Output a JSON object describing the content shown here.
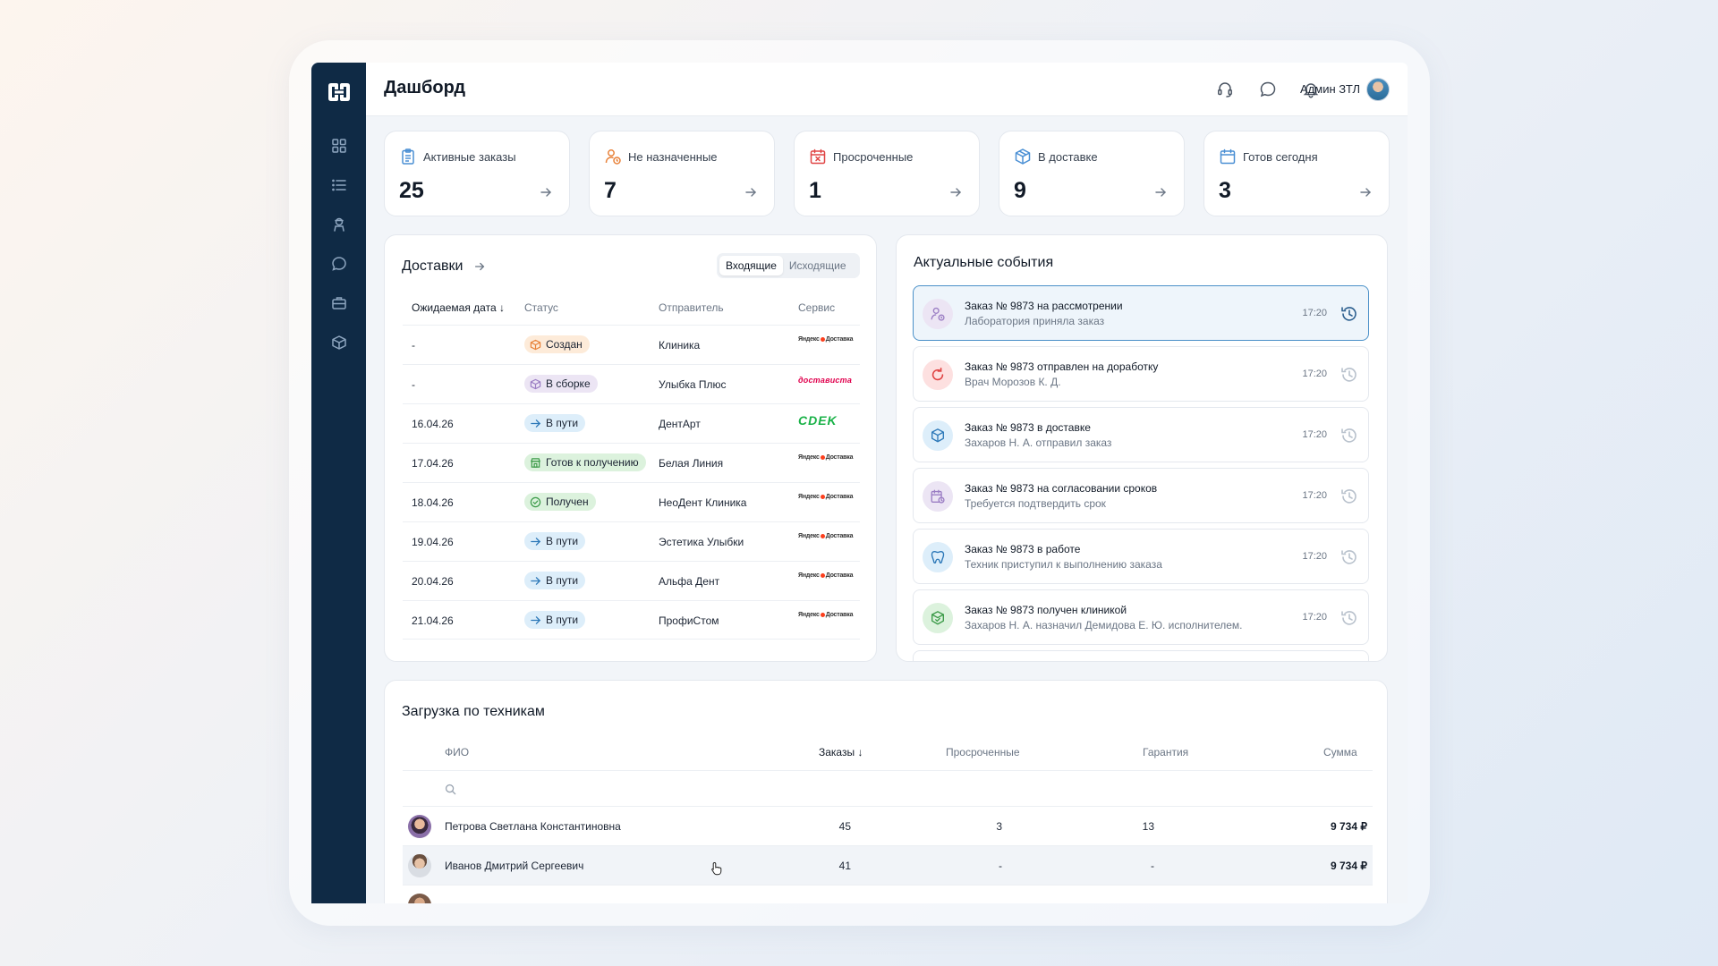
{
  "page": {
    "title": "Дашборд"
  },
  "user": {
    "name": "Админ ЗТЛ"
  },
  "stats": [
    {
      "label": "Активные заказы",
      "value": "25",
      "icon": "clipboard-icon",
      "color": "#4a8fd4"
    },
    {
      "label": "Не назначенные",
      "value": "7",
      "icon": "user-clock-icon",
      "color": "#e8823a"
    },
    {
      "label": "Просроченные",
      "value": "1",
      "icon": "calendar-x-icon",
      "color": "#e04545"
    },
    {
      "label": "В доставке",
      "value": "9",
      "icon": "box-icon",
      "color": "#4a8fd4"
    },
    {
      "label": "Готов сегодня",
      "value": "3",
      "icon": "calendar-icon",
      "color": "#4a8fd4"
    }
  ],
  "deliveries": {
    "title": "Доставки",
    "tabs": [
      "Входящие",
      "Исходящие"
    ],
    "columns": [
      "Ожидаемая дата",
      "Статус",
      "Отправитель",
      "Сервис"
    ],
    "rows": [
      {
        "date": "-",
        "status": "Создан",
        "sender": "Клиника",
        "service": "yandex"
      },
      {
        "date": "-",
        "status": "В сборке",
        "sender": "Улыбка Плюс",
        "service": "dostavista"
      },
      {
        "date": "16.04.26",
        "status": "В пути",
        "sender": "ДентАрт",
        "service": "cdek"
      },
      {
        "date": "17.04.26",
        "status": "Готов к получению",
        "sender": "Белая Линия",
        "service": "yandex"
      },
      {
        "date": "18.04.26",
        "status": "Получен",
        "sender": "НеоДент Клиника",
        "service": "yandex"
      },
      {
        "date": "19.04.26",
        "status": "В пути",
        "sender": "Эстетика Улыбки",
        "service": "yandex"
      },
      {
        "date": "20.04.26",
        "status": "В пути",
        "sender": "Альфа Дент",
        "service": "yandex"
      },
      {
        "date": "21.04.26",
        "status": "В пути",
        "sender": "ПрофиСтом",
        "service": "yandex"
      }
    ],
    "service_labels": {
      "yandex": "Яндекс Доставка",
      "dostavista": "достависта",
      "cdek": "СДЭК"
    }
  },
  "events": {
    "title": "Актуальные события",
    "items": [
      {
        "title": "Заказ № 9873 на рассмотрении",
        "sub": "Лаборатория приняла заказ",
        "time": "17:20"
      },
      {
        "title": "Заказ № 9873 отправлен на доработку",
        "sub": "Врач Морозов К. Д.",
        "time": "17:20"
      },
      {
        "title": "Заказ № 9873 в доставке",
        "sub": "Захаров Н. А. отправил заказ",
        "time": "17:20"
      },
      {
        "title": "Заказ № 9873 на согласовании сроков",
        "sub": "Требуется подтвердить срок",
        "time": "17:20"
      },
      {
        "title": "Заказ № 9873 в работе",
        "sub": "Техник приступил к выполнению заказа",
        "time": "17:20"
      },
      {
        "title": "Заказ № 9873 получен клиникой",
        "sub": "Захаров Н. А. назначил Демидова Е. Ю. исполнителем.",
        "time": "17:20"
      }
    ]
  },
  "techs": {
    "title": "Загрузка по техникам",
    "columns": [
      "ФИО",
      "Заказы",
      "Просроченные",
      "Гарантия",
      "Сумма"
    ],
    "rows": [
      {
        "name": "Петрова Светлана Константиновна",
        "orders": "45",
        "overdue": "3",
        "warranty": "13",
        "sum": "9 734 ₽"
      },
      {
        "name": "Иванов Дмитрий Сергеевич",
        "orders": "41",
        "overdue": "-",
        "warranty": "-",
        "sum": "9 734 ₽"
      }
    ]
  },
  "colors": {
    "sidebar": "#0f2a45",
    "accent": "#4a90c8"
  }
}
